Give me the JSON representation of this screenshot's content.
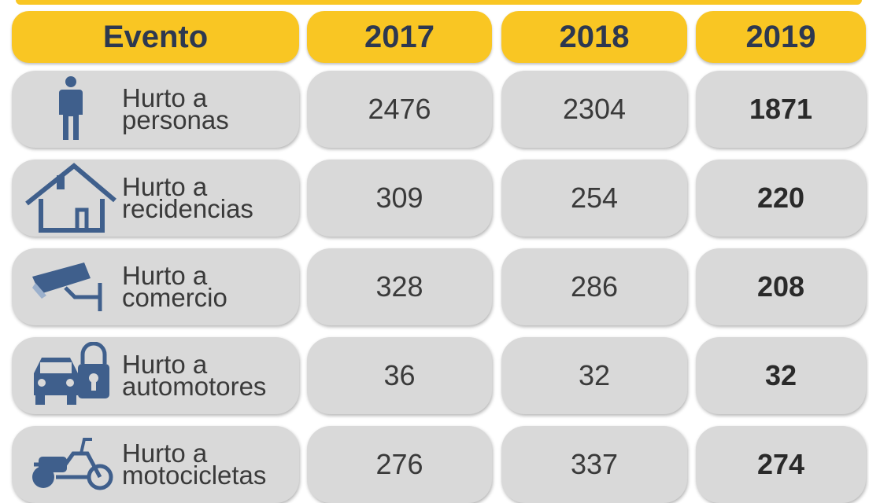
{
  "table": {
    "header": [
      "Evento",
      "2017",
      "2018",
      "2019"
    ],
    "rows": [
      {
        "label": [
          "Hurto a",
          "personas"
        ],
        "values": [
          2476,
          2304,
          1871
        ]
      },
      {
        "label": [
          "Hurto a",
          "recidencias"
        ],
        "values": [
          309,
          254,
          220
        ]
      },
      {
        "label": [
          "Hurto a",
          "comercio"
        ],
        "values": [
          328,
          286,
          208
        ]
      },
      {
        "label": [
          "Hurto a",
          "automotores"
        ],
        "values": [
          36,
          32,
          32
        ]
      },
      {
        "label": [
          "Hurto a",
          "motocicletas"
        ],
        "values": [
          276,
          337,
          274
        ]
      }
    ]
  }
}
